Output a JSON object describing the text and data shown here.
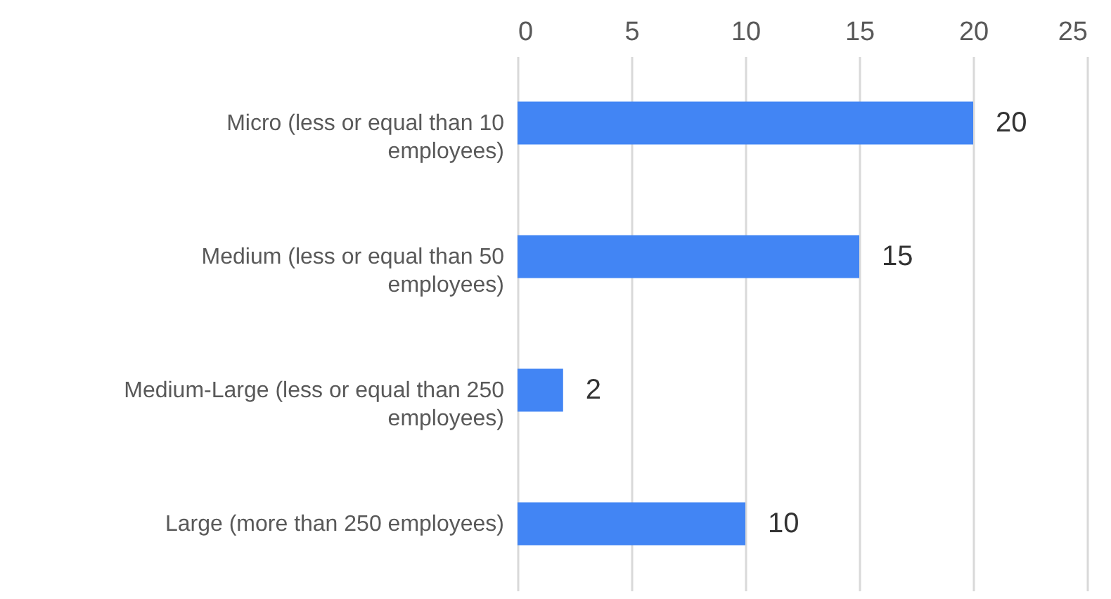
{
  "chart_data": {
    "type": "bar",
    "orientation": "horizontal",
    "categories": [
      "Micro (less or equal than 10 employees)",
      "Medium (less or equal than 50 employees)",
      "Medium-Large (less or equal than 250 employees)",
      "Large (more than 250 employees)"
    ],
    "values": [
      20,
      15,
      2,
      10
    ],
    "color": "#4285f4",
    "xlim": [
      0,
      25
    ],
    "xticks": [
      0,
      5,
      10,
      15,
      20,
      25
    ],
    "grid": "x",
    "data_labels": true
  }
}
